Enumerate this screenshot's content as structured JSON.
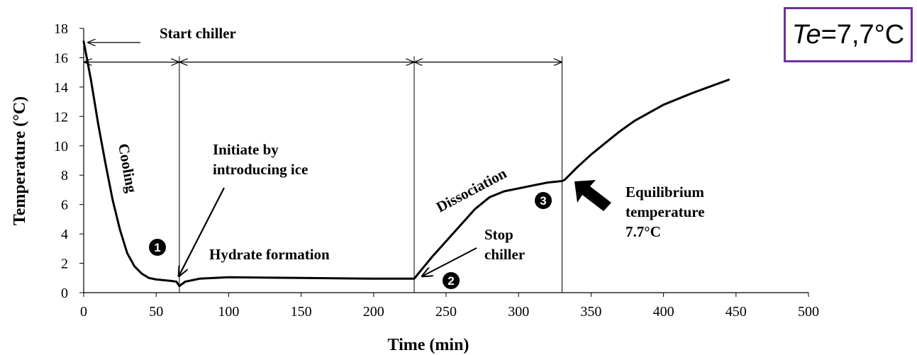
{
  "te_label": {
    "prefix": "Te",
    "value": "=7,7°C"
  },
  "chart_data": {
    "type": "line",
    "xlabel": "Time (min)",
    "ylabel": "Temperature (°C)",
    "xlim": [
      0,
      500
    ],
    "ylim": [
      0,
      18
    ],
    "xticks": [
      0,
      50,
      100,
      150,
      200,
      250,
      300,
      350,
      400,
      450,
      500
    ],
    "yticks": [
      0,
      2,
      4,
      6,
      8,
      10,
      12,
      14,
      16,
      18
    ],
    "grid": false,
    "series": [
      {
        "x": [
          0,
          5,
          10,
          15,
          20,
          25,
          30,
          35,
          40,
          45,
          50,
          55,
          60,
          64,
          66,
          70,
          80,
          100,
          150,
          200,
          228,
          240,
          250,
          260,
          270,
          280,
          290,
          300,
          310,
          320,
          330,
          332,
          340,
          350,
          360,
          370,
          380,
          400,
          420,
          445
        ],
        "y": [
          17.1,
          14.5,
          11.5,
          8.8,
          6.3,
          4.3,
          2.7,
          1.8,
          1.3,
          1.0,
          0.9,
          0.85,
          0.8,
          0.75,
          0.45,
          0.75,
          0.95,
          1.05,
          1.0,
          0.95,
          0.95,
          2.4,
          3.5,
          4.6,
          5.7,
          6.5,
          6.9,
          7.1,
          7.3,
          7.5,
          7.6,
          7.7,
          8.5,
          9.4,
          10.2,
          11.0,
          11.7,
          12.8,
          13.6,
          14.5
        ]
      }
    ],
    "vlines": [
      66,
      228,
      330
    ],
    "arrows_intervals": [
      {
        "from": 0,
        "to": 66
      },
      {
        "from": 66,
        "to": 228
      },
      {
        "from": 228,
        "to": 330
      }
    ],
    "annotations": {
      "start_chiller": "Start chiller",
      "cooling": "Cooling",
      "initiate_line1": "Initiate by",
      "initiate_line2": "introducing ice",
      "hydrate_formation": "Hydrate formation",
      "dissociation": "Dissociation",
      "stop_line1": "Stop",
      "stop_line2": "chiller",
      "equil_line1": "Equilibrium",
      "equil_line2": "temperature",
      "equil_line3": "7.7°C",
      "markers": [
        "1",
        "2",
        "3"
      ]
    }
  }
}
